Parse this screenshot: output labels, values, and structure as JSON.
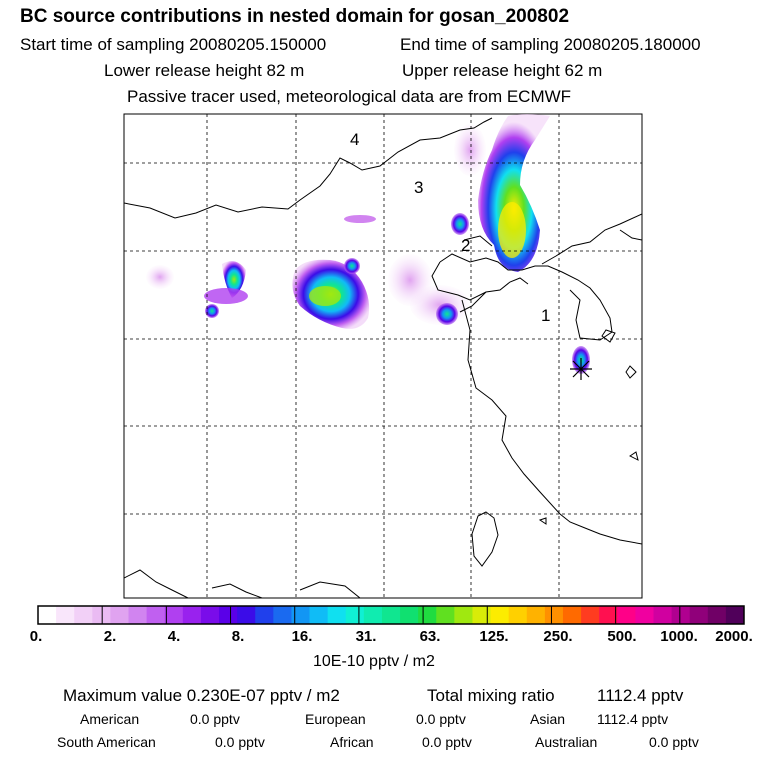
{
  "header": {
    "title": "BC  source contributions in nested domain for gosan_200802",
    "start_time": "Start time of sampling 20080205.150000",
    "end_time": "End time of sampling 20080205.180000",
    "lower_height": "Lower release height   82 m",
    "upper_height": "Upper release height   62 m",
    "note": "Passive tracer used, meteorological data are from ECMWF"
  },
  "map": {
    "region_labels": [
      "1",
      "2",
      "3",
      "4"
    ]
  },
  "colorbar": {
    "tick_labels": [
      "0.",
      "2.",
      "4.",
      "8.",
      "16.",
      "31.",
      "63.",
      "125.",
      "250.",
      "500.",
      "1000.",
      "2000."
    ],
    "unit": "10E-10 pptv / m2",
    "colors": [
      "#ffffff",
      "#f9e6fb",
      "#f2d0f7",
      "#eabbf3",
      "#e0a3f0",
      "#d184f0",
      "#c060f0",
      "#b040f0",
      "#9922ee",
      "#7a0cea",
      "#5a00e8",
      "#3b0ce8",
      "#2040ec",
      "#1a6af0",
      "#1296f4",
      "#10bcf6",
      "#10e0f0",
      "#10f0d4",
      "#10ecb0",
      "#10e690",
      "#10e070",
      "#20dc40",
      "#60e020",
      "#a0e810",
      "#d8ec08",
      "#fcec00",
      "#ffd000",
      "#ffb200",
      "#ff9000",
      "#ff6a00",
      "#ff3c20",
      "#ff1050",
      "#ff0088",
      "#f000a0",
      "#d000a0",
      "#b00090",
      "#90007a",
      "#700066",
      "#50005a"
    ]
  },
  "stats": {
    "maximum": "Maximum value  0.230E-07 pptv / m2",
    "total_label": "Total mixing ratio",
    "total_value": "1112.4 pptv",
    "sources": [
      {
        "label": "American",
        "value": "0.0 pptv"
      },
      {
        "label": "European",
        "value": "0.0 pptv"
      },
      {
        "label": "Asian",
        "value": "1112.4 pptv"
      },
      {
        "label": "South American",
        "value": "0.0 pptv"
      },
      {
        "label": "African",
        "value": "0.0 pptv"
      },
      {
        "label": "Australian",
        "value": "0.0 pptv"
      }
    ]
  }
}
